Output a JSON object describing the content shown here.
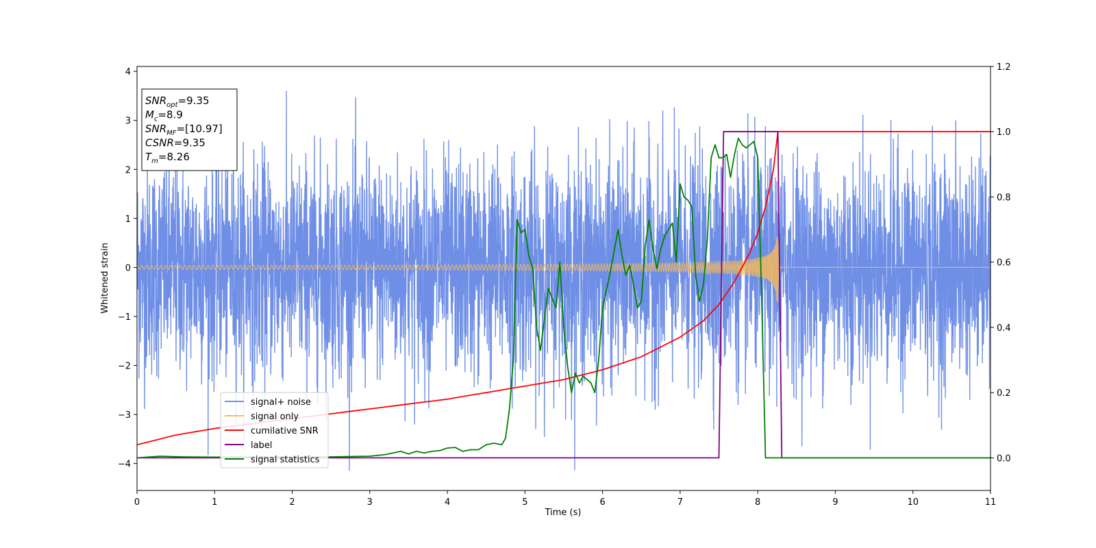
{
  "chart_data": {
    "type": "line",
    "xlabel": "Time (s)",
    "ylabel": "Whitened strain",
    "xlim": [
      0,
      11
    ],
    "ylim_left": [
      -4.55,
      4.1
    ],
    "ylim_right": [
      -0.1,
      1.2
    ],
    "x_ticks": [
      0,
      1,
      2,
      3,
      4,
      5,
      6,
      7,
      8,
      9,
      10,
      11
    ],
    "y_ticks_left": [
      -4,
      -3,
      -2,
      -1,
      0,
      1,
      2,
      3,
      4
    ],
    "y_ticks_right": [
      0.0,
      0.2,
      0.4,
      0.6,
      0.8,
      1.0,
      1.2
    ],
    "x_tick_labels": [
      "0",
      "1",
      "2",
      "3",
      "4",
      "5",
      "6",
      "7",
      "8",
      "9",
      "10",
      "11"
    ],
    "y_tick_labels_left": [
      "−4",
      "−3",
      "−2",
      "−1",
      "0",
      "1",
      "2",
      "3",
      "4"
    ],
    "y_tick_labels_right": [
      "0.0",
      "0.2",
      "0.4",
      "0.6",
      "0.8",
      "1.0",
      "1.2"
    ],
    "legend_placement": "lower-left",
    "grid": false,
    "series": [
      {
        "name": "signal+ noise",
        "axis": "left",
        "color": "#6f8fe6",
        "kind": "noise",
        "x_range": [
          0,
          11
        ],
        "std": 1.1,
        "peak_abs": 4.15
      },
      {
        "name": "signal only",
        "axis": "left",
        "color": "#f5b95c",
        "kind": "chirp",
        "merger_time": 8.26,
        "start_amplitude": 0.04,
        "peak_amplitude": 0.72,
        "ringdown_end": 8.3
      },
      {
        "name": "cumilative SNR",
        "axis": "right",
        "color": "#ff0000",
        "x": [
          0,
          0.5,
          1,
          2,
          3,
          4,
          5,
          5.5,
          6,
          6.5,
          7,
          7.3,
          7.5,
          7.7,
          7.9,
          8.0,
          8.1,
          8.2,
          8.26,
          8.3,
          9,
          10,
          11
        ],
        "y": [
          0.04,
          0.07,
          0.09,
          0.12,
          0.15,
          0.18,
          0.22,
          0.24,
          0.27,
          0.31,
          0.37,
          0.42,
          0.47,
          0.54,
          0.63,
          0.69,
          0.77,
          0.88,
          1.0,
          1.0,
          1.0,
          1.0,
          1.0
        ]
      },
      {
        "name": "label",
        "axis": "right",
        "color": "#800080",
        "x": [
          0,
          7.5,
          7.56,
          8.26,
          8.31,
          11
        ],
        "y": [
          0,
          0,
          1,
          1,
          0,
          0
        ]
      },
      {
        "name": "signal statistics",
        "axis": "right",
        "color": "#008000",
        "x": [
          0,
          0.3,
          0.6,
          1,
          1.5,
          2,
          2.5,
          3,
          3.2,
          3.4,
          3.5,
          3.6,
          3.7,
          3.8,
          3.9,
          4.0,
          4.1,
          4.2,
          4.3,
          4.4,
          4.5,
          4.6,
          4.7,
          4.75,
          4.8,
          4.85,
          4.9,
          4.95,
          5.0,
          5.05,
          5.1,
          5.15,
          5.2,
          5.3,
          5.4,
          5.45,
          5.5,
          5.55,
          5.6,
          5.65,
          5.7,
          5.75,
          5.8,
          5.85,
          5.9,
          5.95,
          6.0,
          6.1,
          6.2,
          6.25,
          6.3,
          6.35,
          6.4,
          6.45,
          6.5,
          6.55,
          6.6,
          6.65,
          6.7,
          6.75,
          6.8,
          6.85,
          6.9,
          6.95,
          7.0,
          7.05,
          7.1,
          7.15,
          7.2,
          7.25,
          7.3,
          7.35,
          7.4,
          7.45,
          7.5,
          7.55,
          7.6,
          7.65,
          7.7,
          7.75,
          7.8,
          7.85,
          7.9,
          7.95,
          8.0,
          8.05,
          8.1,
          8.15,
          8.2,
          8.25,
          8.3,
          8.35,
          11
        ],
        "y": [
          0,
          0.005,
          0.003,
          0.002,
          0.003,
          0.002,
          0.003,
          0.005,
          0.01,
          0.02,
          0.012,
          0.02,
          0.015,
          0.02,
          0.022,
          0.03,
          0.032,
          0.02,
          0.025,
          0.025,
          0.04,
          0.045,
          0.04,
          0.06,
          0.15,
          0.3,
          0.73,
          0.69,
          0.7,
          0.62,
          0.58,
          0.4,
          0.33,
          0.52,
          0.46,
          0.6,
          0.4,
          0.28,
          0.2,
          0.26,
          0.23,
          0.25,
          0.24,
          0.23,
          0.2,
          0.3,
          0.46,
          0.57,
          0.7,
          0.62,
          0.56,
          0.59,
          0.53,
          0.46,
          0.48,
          0.65,
          0.73,
          0.64,
          0.58,
          0.64,
          0.68,
          0.7,
          0.72,
          0.6,
          0.84,
          0.8,
          0.79,
          0.77,
          0.56,
          0.48,
          0.53,
          0.67,
          0.92,
          0.96,
          0.92,
          0.92,
          0.93,
          0.86,
          0.93,
          0.98,
          0.96,
          0.95,
          0.96,
          0.97,
          0.92,
          0.5,
          0.0,
          0.0,
          0.0,
          0.0,
          0.0,
          0.0,
          0.0
        ]
      }
    ],
    "info_box": [
      {
        "base": "SNR",
        "sub": "opt",
        "value": "=9.35"
      },
      {
        "base": "M",
        "sub": "c",
        "value": "=8.9"
      },
      {
        "base": "SNR",
        "sub": "MF",
        "value": "=[10.97]"
      },
      {
        "base": "CSNR",
        "sub": "",
        "value": "=9.35"
      },
      {
        "base": "T",
        "sub": "m",
        "value": "=8.26"
      }
    ]
  }
}
